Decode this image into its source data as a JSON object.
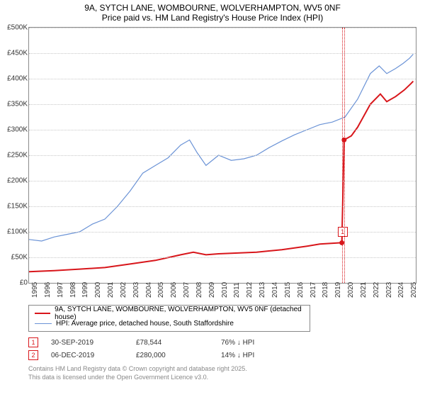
{
  "title_line1": "9A, SYTCH LANE, WOMBOURNE, WOLVERHAMPTON, WV5 0NF",
  "title_line2": "Price paid vs. HM Land Registry's House Price Index (HPI)",
  "chart": {
    "type": "line",
    "background_color": "#ffffff",
    "grid_color": "#c8c8c8",
    "axis_color": "#8a8a8a",
    "x_years": [
      "1995",
      "1996",
      "1997",
      "1998",
      "1999",
      "2000",
      "2001",
      "2002",
      "2003",
      "2004",
      "2005",
      "2006",
      "2007",
      "2008",
      "2009",
      "2010",
      "2011",
      "2012",
      "2013",
      "2014",
      "2015",
      "2016",
      "2017",
      "2018",
      "2019",
      "2020",
      "2021",
      "2022",
      "2023",
      "2024",
      "2025"
    ],
    "x_min": 1995,
    "x_max": 2025.6,
    "y_min": 0,
    "y_max": 500000,
    "y_tick_step": 50000,
    "y_tick_labels": [
      "£0",
      "£50K",
      "£100K",
      "£150K",
      "£200K",
      "£250K",
      "£300K",
      "£350K",
      "£400K",
      "£450K",
      "£500K"
    ],
    "label_fontsize": 10,
    "series": [
      {
        "name": "hpi",
        "color": "#6b93d6",
        "line_width": 1.2,
        "points": [
          [
            1995,
            85000
          ],
          [
            1996,
            82000
          ],
          [
            1997,
            90000
          ],
          [
            1998,
            95000
          ],
          [
            1999,
            100000
          ],
          [
            2000,
            115000
          ],
          [
            2001,
            125000
          ],
          [
            2002,
            150000
          ],
          [
            2003,
            180000
          ],
          [
            2004,
            215000
          ],
          [
            2005,
            230000
          ],
          [
            2006,
            245000
          ],
          [
            2007,
            270000
          ],
          [
            2007.7,
            280000
          ],
          [
            2008.3,
            255000
          ],
          [
            2009,
            230000
          ],
          [
            2010,
            250000
          ],
          [
            2011,
            240000
          ],
          [
            2012,
            243000
          ],
          [
            2013,
            250000
          ],
          [
            2014,
            265000
          ],
          [
            2015,
            278000
          ],
          [
            2016,
            290000
          ],
          [
            2017,
            300000
          ],
          [
            2018,
            310000
          ],
          [
            2019,
            315000
          ],
          [
            2020,
            325000
          ],
          [
            2021,
            360000
          ],
          [
            2022,
            410000
          ],
          [
            2022.7,
            425000
          ],
          [
            2023.3,
            410000
          ],
          [
            2024,
            420000
          ],
          [
            2024.6,
            430000
          ],
          [
            2025.1,
            440000
          ],
          [
            2025.4,
            448000
          ]
        ]
      },
      {
        "name": "price_paid",
        "color": "#d8161b",
        "line_width": 2,
        "points": [
          [
            1995,
            22000
          ],
          [
            1997,
            24000
          ],
          [
            1999,
            27000
          ],
          [
            2001,
            30000
          ],
          [
            2003,
            37000
          ],
          [
            2005,
            44000
          ],
          [
            2007,
            55000
          ],
          [
            2008,
            60000
          ],
          [
            2009,
            55000
          ],
          [
            2010,
            57000
          ],
          [
            2011,
            58000
          ],
          [
            2013,
            60000
          ],
          [
            2015,
            65000
          ],
          [
            2017,
            72000
          ],
          [
            2018,
            76000
          ],
          [
            2019.7,
            78544
          ],
          [
            2019.75,
            80000
          ],
          [
            2019.93,
            280000
          ],
          [
            2020.5,
            288000
          ],
          [
            2021,
            305000
          ],
          [
            2022,
            350000
          ],
          [
            2022.8,
            370000
          ],
          [
            2023.3,
            355000
          ],
          [
            2024,
            365000
          ],
          [
            2024.7,
            378000
          ],
          [
            2025.2,
            390000
          ],
          [
            2025.4,
            395000
          ]
        ]
      }
    ],
    "markers": [
      {
        "n": "1",
        "x": 2019.75,
        "y": 78544,
        "color": "#d8161b",
        "label_y_offset": 0
      },
      {
        "n": "2",
        "x": 2019.93,
        "y": 280000,
        "color": "#d8161b",
        "label_y_offset": -330
      }
    ]
  },
  "legend": {
    "items": [
      {
        "color": "#d8161b",
        "width": 2,
        "text": "9A, SYTCH LANE, WOMBOURNE, WOLVERHAMPTON, WV5 0NF (detached house)"
      },
      {
        "color": "#6b93d6",
        "width": 1.2,
        "text": "HPI: Average price, detached house, South Staffordshire"
      }
    ]
  },
  "transactions": [
    {
      "n": "1",
      "color": "#d8161b",
      "date": "30-SEP-2019",
      "price": "£78,544",
      "pct": "76%",
      "vs": "HPI"
    },
    {
      "n": "2",
      "color": "#d8161b",
      "date": "06-DEC-2019",
      "price": "£280,000",
      "pct": "14%",
      "vs": "HPI"
    }
  ],
  "footer_line1": "Contains HM Land Registry data © Crown copyright and database right 2025.",
  "footer_line2": "This data is licensed under the Open Government Licence v3.0."
}
